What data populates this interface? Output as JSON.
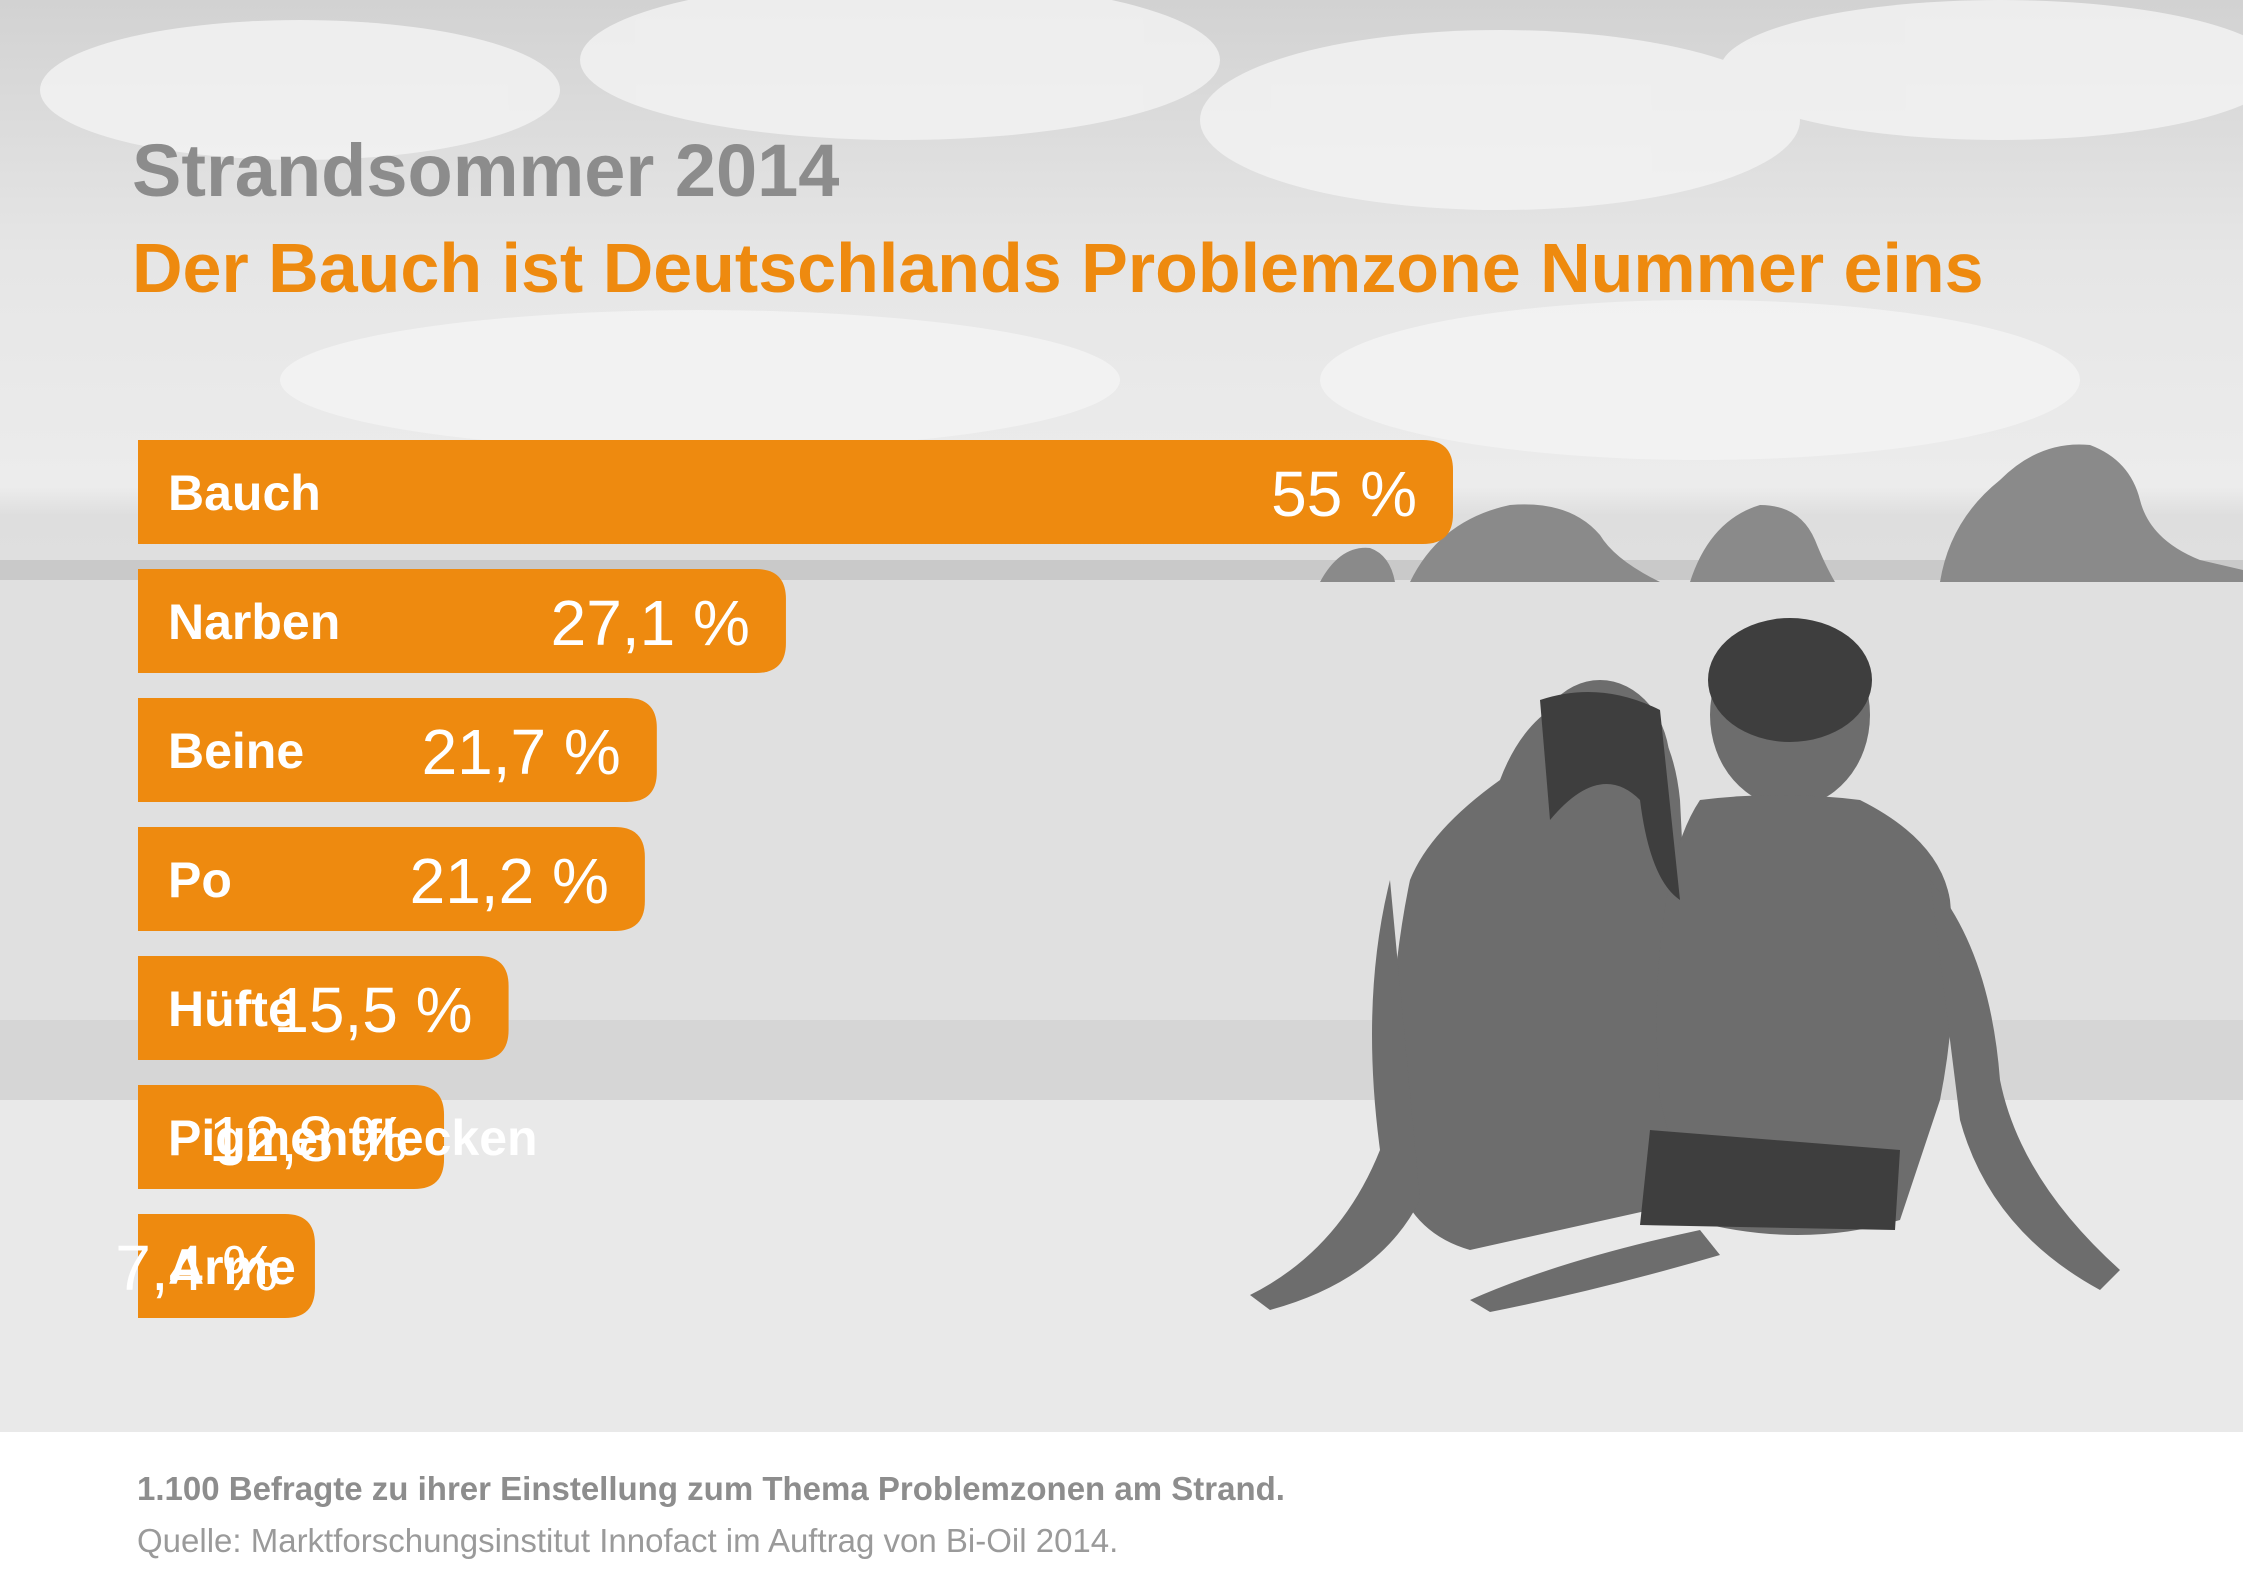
{
  "title": "Strandsommer 2014",
  "subtitle": "Der Bauch ist Deutschlands Problemzone Nummer eins",
  "background": {
    "description_icon": "beach-couple-photo"
  },
  "colors": {
    "accent": "#ee8a0f",
    "title_gray": "#8c8c8c",
    "footer_text": "#8d8d8d"
  },
  "chart_data": {
    "type": "bar",
    "orientation": "horizontal",
    "unit": "%",
    "categories": [
      "Bauch",
      "Narben",
      "Beine",
      "Po",
      "Hüfte",
      "Pigmentflecken",
      "Arme"
    ],
    "values": [
      55,
      27.1,
      21.7,
      21.2,
      15.5,
      12.8,
      7.4
    ],
    "value_labels": [
      "55 %",
      "27,1 %",
      "21,7 %",
      "21,2 %",
      "15,5 %",
      "12,8 %",
      "7,4 %"
    ],
    "title": "Strandsommer 2014",
    "subtitle": "Der Bauch ist Deutschlands Problemzone Nummer eins",
    "xlabel": "",
    "ylabel": "",
    "xlim": [
      0,
      55
    ],
    "grid": false,
    "legend": "none"
  },
  "footer": {
    "note": "1.100 Befragte zu ihrer Einstellung zum Thema Problemzonen am Strand.",
    "source": "Quelle: Marktforschungsinstitut Innofact im Auftrag von Bi-Oil 2014."
  }
}
